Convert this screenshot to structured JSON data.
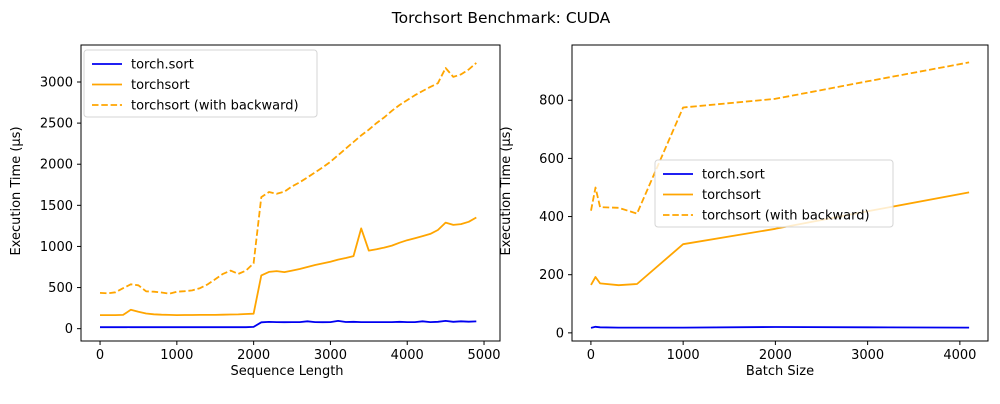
{
  "figure": {
    "title": "Torchsort Benchmark: CUDA",
    "background": "#ffffff"
  },
  "colors": {
    "torch_sort_line": "#0000f0",
    "torchsort_line": "#ffa500",
    "axis": "#000000",
    "legend_edge": "#d5d5d5",
    "legend_fill_alpha": 0.8
  },
  "chart_data": [
    {
      "type": "line",
      "subplot": "left",
      "xlabel": "Sequence Length",
      "ylabel": "Execution Time (µs)",
      "xlim": [
        -248,
        5208
      ],
      "ylim": [
        -150,
        3450
      ],
      "xticks": [
        0,
        1000,
        2000,
        3000,
        4000,
        5000
      ],
      "yticks": [
        0,
        500,
        1000,
        1500,
        2000,
        2500,
        3000
      ],
      "grid": false,
      "legend_position": "upper-left",
      "series": [
        {
          "name": "torch.sort",
          "color": "#0000f0",
          "style": "solid",
          "x": [
            0,
            100,
            200,
            300,
            400,
            500,
            600,
            700,
            800,
            900,
            1000,
            1100,
            1200,
            1300,
            1400,
            1500,
            1600,
            1700,
            1800,
            1900,
            2000,
            2100,
            2200,
            2300,
            2400,
            2500,
            2600,
            2700,
            2800,
            2900,
            3000,
            3100,
            3200,
            3300,
            3400,
            3500,
            3600,
            3700,
            3800,
            3900,
            4000,
            4100,
            4200,
            4300,
            4400,
            4500,
            4600,
            4700,
            4800,
            4900
          ],
          "y": [
            18,
            18,
            18,
            19,
            18,
            18,
            18,
            18,
            18,
            18,
            18,
            18,
            18,
            18,
            18,
            18,
            18,
            18,
            18,
            18,
            22,
            78,
            82,
            80,
            79,
            80,
            80,
            90,
            80,
            79,
            80,
            95,
            81,
            83,
            80,
            80,
            80,
            80,
            80,
            84,
            80,
            80,
            90,
            80,
            84,
            95,
            83,
            90,
            85,
            88
          ]
        },
        {
          "name": "torchsort",
          "color": "#ffa500",
          "style": "solid",
          "x": [
            0,
            100,
            200,
            300,
            400,
            500,
            600,
            700,
            800,
            900,
            1000,
            1100,
            1200,
            1300,
            1400,
            1500,
            1600,
            1700,
            1800,
            1900,
            2000,
            2100,
            2200,
            2300,
            2400,
            2500,
            2600,
            2700,
            2800,
            2900,
            3000,
            3100,
            3200,
            3300,
            3400,
            3500,
            3600,
            3700,
            3800,
            3900,
            4000,
            4100,
            4200,
            4300,
            4400,
            4500,
            4600,
            4700,
            4800,
            4900
          ],
          "y": [
            165,
            165,
            165,
            168,
            230,
            205,
            185,
            175,
            170,
            168,
            165,
            166,
            166,
            167,
            168,
            168,
            170,
            172,
            174,
            178,
            182,
            648,
            690,
            700,
            688,
            706,
            726,
            750,
            774,
            794,
            815,
            840,
            860,
            882,
            1220,
            950,
            966,
            986,
            1010,
            1046,
            1076,
            1100,
            1126,
            1152,
            1200,
            1290,
            1262,
            1272,
            1300,
            1352
          ]
        },
        {
          "name": "torchsort (with backward)",
          "color": "#ffa500",
          "style": "dashed",
          "x": [
            0,
            100,
            200,
            300,
            400,
            500,
            600,
            700,
            800,
            900,
            1000,
            1100,
            1200,
            1300,
            1400,
            1500,
            1600,
            1700,
            1800,
            1900,
            2000,
            2100,
            2200,
            2300,
            2400,
            2500,
            2600,
            2700,
            2800,
            2900,
            3000,
            3100,
            3200,
            3300,
            3400,
            3500,
            3600,
            3700,
            3800,
            3900,
            4000,
            4100,
            4200,
            4300,
            4400,
            4500,
            4600,
            4700,
            4800,
            4900
          ],
          "y": [
            435,
            430,
            442,
            492,
            540,
            528,
            455,
            450,
            440,
            425,
            450,
            456,
            466,
            492,
            538,
            600,
            666,
            706,
            666,
            706,
            795,
            1600,
            1662,
            1640,
            1666,
            1730,
            1780,
            1840,
            1900,
            1962,
            2030,
            2110,
            2190,
            2270,
            2350,
            2420,
            2500,
            2570,
            2650,
            2720,
            2780,
            2840,
            2890,
            2940,
            2985,
            3170,
            3062,
            3092,
            3152,
            3232
          ]
        }
      ]
    },
    {
      "type": "line",
      "subplot": "right",
      "xlabel": "Batch Size",
      "ylabel": "Execution Time (µs)",
      "xlim": [
        -205,
        4305
      ],
      "ylim": [
        -28,
        990
      ],
      "xticks": [
        0,
        1000,
        2000,
        3000,
        4000
      ],
      "yticks": [
        0,
        200,
        400,
        600,
        800
      ],
      "grid": false,
      "legend_position": "center-right",
      "series": [
        {
          "name": "torch.sort",
          "color": "#0000f0",
          "style": "solid",
          "x": [
            1,
            50,
            100,
            300,
            500,
            1000,
            2000,
            3000,
            4100
          ],
          "y": [
            17,
            21,
            19,
            18,
            18,
            18,
            20,
            19,
            18
          ]
        },
        {
          "name": "torchsort",
          "color": "#ffa500",
          "style": "solid",
          "x": [
            1,
            50,
            100,
            300,
            500,
            1000,
            2000,
            3000,
            4100
          ],
          "y": [
            165,
            192,
            170,
            164,
            168,
            305,
            358,
            418,
            483
          ]
        },
        {
          "name": "torchsort (with backward)",
          "color": "#ffa500",
          "style": "dashed",
          "x": [
            1,
            50,
            100,
            300,
            500,
            1000,
            2000,
            3000,
            4100
          ],
          "y": [
            420,
            500,
            432,
            430,
            410,
            775,
            805,
            865,
            930
          ]
        }
      ]
    }
  ]
}
